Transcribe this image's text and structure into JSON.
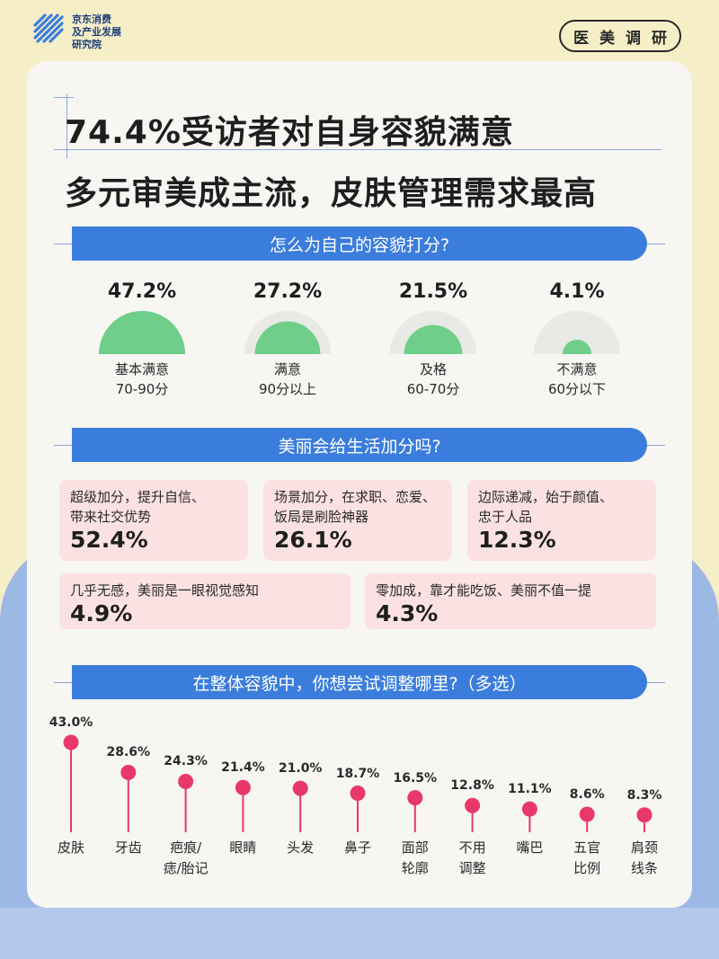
{
  "header": {
    "brand_lines": [
      "京东消费",
      "及产业发展",
      "研究院"
    ],
    "tag": "医美调研",
    "title_line1": "74.4%受访者对自身容貌满意",
    "title_line2": "多元审美成主流，皮肤管理需求最高"
  },
  "colors": {
    "accent_blue": "#3b7ddc",
    "semi_green": "#6fcf8a",
    "pink_box": "#fbe1e1",
    "lollipop_red": "#e8386a"
  },
  "section1": {
    "title": "怎么为自己的容貌打分?"
  },
  "section2": {
    "title": "美丽会给生活加分吗?"
  },
  "section3": {
    "title": "在整体容貌中，你想尝试调整哪里?（多选）"
  },
  "chart_data": [
    {
      "type": "semicircle-gauge",
      "items": [
        {
          "pct_label": "47.2%",
          "value": 47.2,
          "label": "基本满意",
          "sub": "70-90分"
        },
        {
          "pct_label": "27.2%",
          "value": 27.2,
          "label": "满意",
          "sub": "90分以上"
        },
        {
          "pct_label": "21.5%",
          "value": 21.5,
          "label": "及格",
          "sub": "60-70分"
        },
        {
          "pct_label": "4.1%",
          "value": 4.1,
          "label": "不满意",
          "sub": "60分以下"
        }
      ]
    },
    {
      "type": "table",
      "items": [
        {
          "text": "超级加分，提升自信、带来社交优势",
          "line1": "超级加分，提升自信、",
          "line2": "带来社交优势",
          "value_label": "52.4%",
          "value": 52.4
        },
        {
          "text": "场景加分，在求职、恋爱、饭局是刷脸神器",
          "line1": "场景加分，在求职、恋爱、",
          "line2": "饭局是刷脸神器",
          "value_label": "26.1%",
          "value": 26.1
        },
        {
          "text": "边际递减，始于颜值、忠于人品",
          "line1": "边际递减，始于颜值、",
          "line2": "忠于人品",
          "value_label": "12.3%",
          "value": 12.3
        },
        {
          "text": "几乎无感，美丽是一眼视觉感知",
          "line1": "几乎无感，美丽是一眼视觉感知",
          "line2": "",
          "value_label": "4.9%",
          "value": 4.9
        },
        {
          "text": "零加成，靠才能吃饭、美丽不值一提",
          "line1": "零加成，靠才能吃饭、美丽不值一提",
          "line2": "",
          "value_label": "4.3%",
          "value": 4.3
        }
      ]
    },
    {
      "type": "lollipop",
      "categories": [
        "皮肤",
        "牙齿",
        "疤痕/痣/胎记",
        "眼睛",
        "头发",
        "鼻子",
        "面部轮廓",
        "不用调整",
        "嘴巴",
        "五官比例",
        "肩颈线条"
      ],
      "category_lines": [
        [
          "皮肤"
        ],
        [
          "牙齿"
        ],
        [
          "疤痕/",
          "痣/胎记"
        ],
        [
          "眼睛"
        ],
        [
          "头发"
        ],
        [
          "鼻子"
        ],
        [
          "面部",
          "轮廓"
        ],
        [
          "不用",
          "调整"
        ],
        [
          "嘴巴"
        ],
        [
          "五官",
          "比例"
        ],
        [
          "肩颈",
          "线条"
        ]
      ],
      "values": [
        43.0,
        28.6,
        24.3,
        21.4,
        21.0,
        18.7,
        16.5,
        12.8,
        11.1,
        8.6,
        8.3
      ],
      "value_labels": [
        "43.0%",
        "28.6%",
        "24.3%",
        "21.4%",
        "21.0%",
        "18.7%",
        "16.5%",
        "12.8%",
        "11.1%",
        "8.6%",
        "8.3%"
      ]
    }
  ]
}
